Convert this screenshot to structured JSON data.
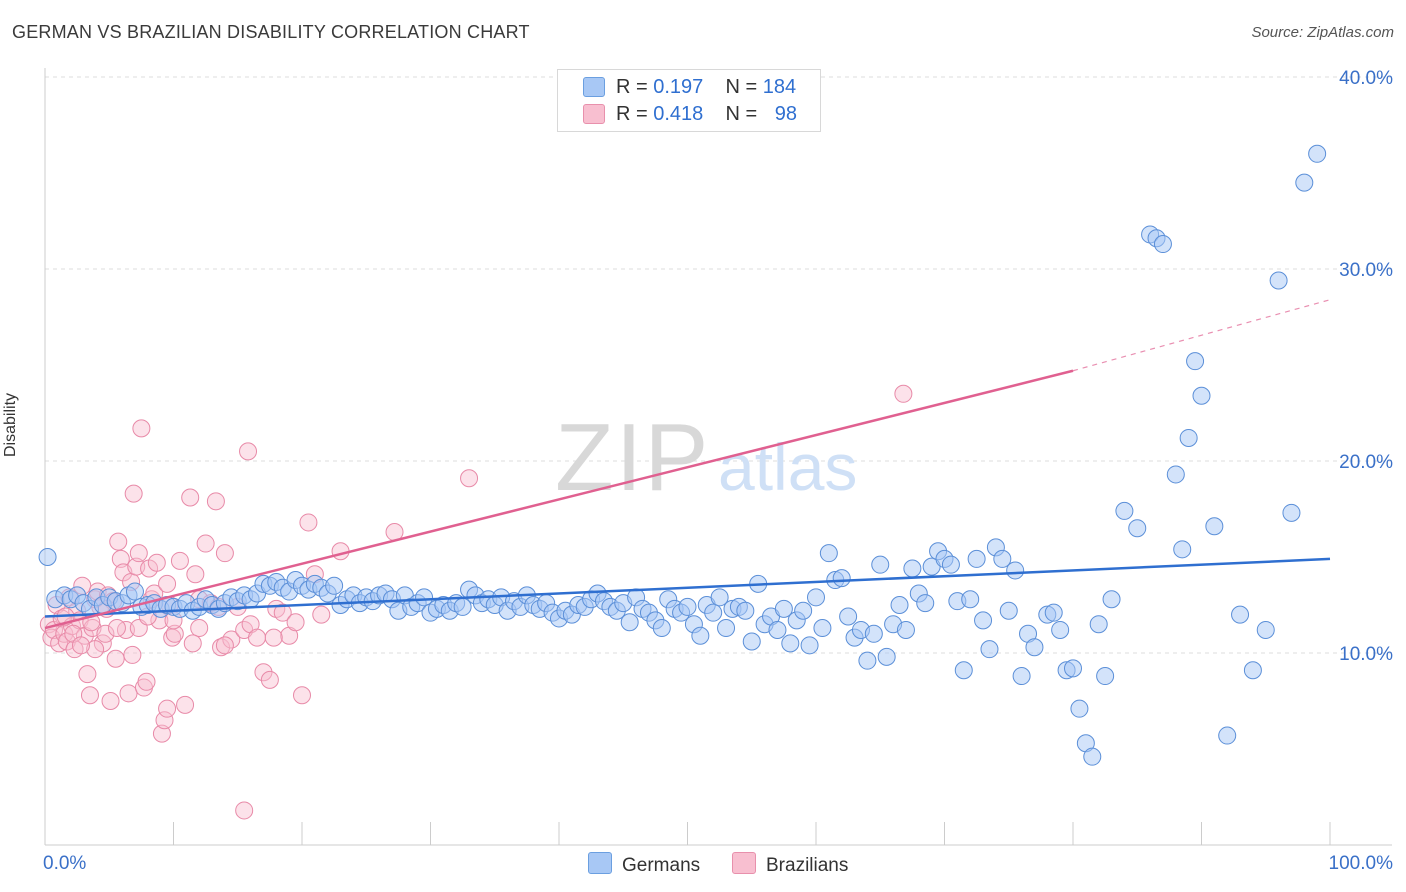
{
  "title": "GERMAN VS BRAZILIAN DISABILITY CORRELATION CHART",
  "source": "Source: ZipAtlas.com",
  "watermark": {
    "zip": "ZIP",
    "atlas": "atlas"
  },
  "legend": {
    "r_label": "R = ",
    "n_label": "N = ",
    "rows": [
      {
        "r": "0.197",
        "n": "184",
        "color": "#a8c8f5",
        "border": "#6b9fe0"
      },
      {
        "r": "0.418",
        "n": "98",
        "color": "#f8bfd0",
        "border": "#e890ac"
      }
    ]
  },
  "bottom_legend": {
    "germans": "Germans",
    "brazilians": "Brazilians"
  },
  "colors": {
    "german_fill": "#a8c8f5",
    "german_stroke": "#5b8fd8",
    "german_line": "#2f6fd0",
    "brazil_fill": "#f8bfd0",
    "brazil_stroke": "#e88aa8",
    "brazil_line": "#e06090",
    "axis_text": "#3a70c8",
    "grid": "#dddddd"
  },
  "chart_data": {
    "type": "scatter",
    "title": "GERMAN VS BRAZILIAN DISABILITY CORRELATION CHART",
    "xlabel": "",
    "ylabel": "Disability",
    "xlim": [
      0,
      100
    ],
    "ylim": [
      0,
      40
    ],
    "x_tick_labels": [
      "0.0%",
      "100.0%"
    ],
    "y_ticks": [
      10,
      20,
      30,
      40
    ],
    "y_tick_labels": [
      "10.0%",
      "20.0%",
      "30.0%",
      "40.0%"
    ],
    "grid": true,
    "legend_position": "top-center",
    "series": [
      {
        "name": "Germans",
        "r": 0.197,
        "n": 184,
        "trend": {
          "x": [
            0,
            100
          ],
          "y": [
            11.9,
            14.9
          ]
        },
        "points": [
          [
            0.2,
            15
          ],
          [
            0.8,
            12.8
          ],
          [
            1.5,
            13
          ],
          [
            2,
            12.8
          ],
          [
            2.5,
            13
          ],
          [
            3,
            12.6
          ],
          [
            3.5,
            12.3
          ],
          [
            4,
            12.9
          ],
          [
            4.5,
            12.5
          ],
          [
            5,
            12.9
          ],
          [
            5.5,
            12.7
          ],
          [
            6,
            12.6
          ],
          [
            6.5,
            13
          ],
          [
            7,
            13.2
          ],
          [
            7.5,
            12.4
          ],
          [
            8,
            12.5
          ],
          [
            8.5,
            12.6
          ],
          [
            9,
            12.3
          ],
          [
            9.5,
            12.5
          ],
          [
            10,
            12.4
          ],
          [
            10.5,
            12.3
          ],
          [
            11,
            12.6
          ],
          [
            11.5,
            12.2
          ],
          [
            12,
            12.4
          ],
          [
            12.5,
            12.8
          ],
          [
            13,
            12.5
          ],
          [
            13.5,
            12.3
          ],
          [
            14,
            12.6
          ],
          [
            14.5,
            12.9
          ],
          [
            15,
            12.7
          ],
          [
            15.5,
            13
          ],
          [
            16,
            12.8
          ],
          [
            16.5,
            13.1
          ],
          [
            17,
            13.6
          ],
          [
            17.5,
            13.5
          ],
          [
            18,
            13.7
          ],
          [
            18.5,
            13.4
          ],
          [
            19,
            13.2
          ],
          [
            19.5,
            13.8
          ],
          [
            20,
            13.5
          ],
          [
            20.5,
            13.3
          ],
          [
            21,
            13.6
          ],
          [
            21.5,
            13.4
          ],
          [
            22,
            13.1
          ],
          [
            22.5,
            13.5
          ],
          [
            23,
            12.5
          ],
          [
            23.5,
            12.8
          ],
          [
            24,
            13
          ],
          [
            24.5,
            12.6
          ],
          [
            25,
            12.9
          ],
          [
            25.5,
            12.7
          ],
          [
            26,
            13
          ],
          [
            26.5,
            13.1
          ],
          [
            27,
            12.8
          ],
          [
            27.5,
            12.2
          ],
          [
            28,
            13
          ],
          [
            28.5,
            12.4
          ],
          [
            29,
            12.6
          ],
          [
            29.5,
            12.9
          ],
          [
            30,
            12.1
          ],
          [
            30.5,
            12.3
          ],
          [
            31,
            12.5
          ],
          [
            31.5,
            12.2
          ],
          [
            32,
            12.6
          ],
          [
            32.5,
            12.4
          ],
          [
            33,
            13.3
          ],
          [
            33.5,
            13
          ],
          [
            34,
            12.6
          ],
          [
            34.5,
            12.8
          ],
          [
            35,
            12.5
          ],
          [
            35.5,
            12.9
          ],
          [
            36,
            12.2
          ],
          [
            36.5,
            12.7
          ],
          [
            37,
            12.4
          ],
          [
            37.5,
            13
          ],
          [
            38,
            12.5
          ],
          [
            38.5,
            12.3
          ],
          [
            39,
            12.6
          ],
          [
            39.5,
            12.1
          ],
          [
            40,
            11.8
          ],
          [
            40.5,
            12.2
          ],
          [
            41,
            12
          ],
          [
            41.5,
            12.5
          ],
          [
            42,
            12.4
          ],
          [
            42.5,
            12.8
          ],
          [
            43,
            13.1
          ],
          [
            43.5,
            12.7
          ],
          [
            44,
            12.4
          ],
          [
            44.5,
            12.2
          ],
          [
            45,
            12.6
          ],
          [
            45.5,
            11.6
          ],
          [
            46,
            12.9
          ],
          [
            46.5,
            12.3
          ],
          [
            47,
            12.1
          ],
          [
            47.5,
            11.7
          ],
          [
            48,
            11.3
          ],
          [
            48.5,
            12.8
          ],
          [
            49,
            12.3
          ],
          [
            49.5,
            12.1
          ],
          [
            50,
            12.4
          ],
          [
            50.5,
            11.5
          ],
          [
            51,
            10.9
          ],
          [
            51.5,
            12.5
          ],
          [
            52,
            12.1
          ],
          [
            52.5,
            12.9
          ],
          [
            53,
            11.3
          ],
          [
            53.5,
            12.3
          ],
          [
            54,
            12.4
          ],
          [
            54.5,
            12.2
          ],
          [
            55,
            10.6
          ],
          [
            55.5,
            13.6
          ],
          [
            56,
            11.5
          ],
          [
            56.5,
            11.9
          ],
          [
            57,
            11.2
          ],
          [
            57.5,
            12.3
          ],
          [
            58,
            10.5
          ],
          [
            58.5,
            11.7
          ],
          [
            59,
            12.2
          ],
          [
            59.5,
            10.4
          ],
          [
            60,
            12.9
          ],
          [
            60.5,
            11.3
          ],
          [
            61,
            15.2
          ],
          [
            61.5,
            13.8
          ],
          [
            62,
            13.9
          ],
          [
            62.5,
            11.9
          ],
          [
            63,
            10.8
          ],
          [
            63.5,
            11.2
          ],
          [
            64,
            9.6
          ],
          [
            64.5,
            11
          ],
          [
            65,
            14.6
          ],
          [
            65.5,
            9.8
          ],
          [
            66,
            11.5
          ],
          [
            66.5,
            12.5
          ],
          [
            67,
            11.2
          ],
          [
            67.5,
            14.4
          ],
          [
            68,
            13.1
          ],
          [
            68.5,
            12.6
          ],
          [
            69,
            14.5
          ],
          [
            69.5,
            15.3
          ],
          [
            70,
            14.9
          ],
          [
            70.5,
            14.6
          ],
          [
            71,
            12.7
          ],
          [
            71.5,
            9.1
          ],
          [
            72,
            12.8
          ],
          [
            72.5,
            14.9
          ],
          [
            73,
            11.7
          ],
          [
            73.5,
            10.2
          ],
          [
            74,
            15.5
          ],
          [
            74.5,
            14.9
          ],
          [
            75,
            12.2
          ],
          [
            75.5,
            14.3
          ],
          [
            76,
            8.8
          ],
          [
            76.5,
            11
          ],
          [
            77,
            10.3
          ],
          [
            78,
            12
          ],
          [
            78.5,
            12.1
          ],
          [
            79,
            11.2
          ],
          [
            79.5,
            9.1
          ],
          [
            80,
            9.2
          ],
          [
            80.5,
            7.1
          ],
          [
            81,
            5.3
          ],
          [
            81.5,
            4.6
          ],
          [
            82,
            11.5
          ],
          [
            82.5,
            8.8
          ],
          [
            83,
            12.8
          ],
          [
            84,
            17.4
          ],
          [
            85,
            16.5
          ],
          [
            86,
            31.8
          ],
          [
            86.5,
            31.6
          ],
          [
            87,
            31.3
          ],
          [
            88,
            19.3
          ],
          [
            88.5,
            15.4
          ],
          [
            89,
            21.2
          ],
          [
            89.5,
            25.2
          ],
          [
            90,
            23.4
          ],
          [
            91,
            16.6
          ],
          [
            92,
            5.7
          ],
          [
            93,
            12
          ],
          [
            94,
            9.1
          ],
          [
            95,
            11.2
          ],
          [
            96,
            29.4
          ],
          [
            97,
            17.3
          ],
          [
            98,
            34.5
          ],
          [
            99,
            36
          ]
        ]
      },
      {
        "name": "Brazilians",
        "r": 0.418,
        "n": 98,
        "trend": {
          "x": [
            0,
            80
          ],
          "y": [
            11.3,
            24.7
          ]
        },
        "trend_dashed": {
          "x": [
            80,
            100
          ],
          "y": [
            24.7,
            28.4
          ]
        },
        "points": [
          [
            0.3,
            11.5
          ],
          [
            0.5,
            10.8
          ],
          [
            0.7,
            11.2
          ],
          [
            0.9,
            12.5
          ],
          [
            1.1,
            10.5
          ],
          [
            1.3,
            11.8
          ],
          [
            1.5,
            11
          ],
          [
            1.7,
            10.6
          ],
          [
            1.9,
            12.9
          ],
          [
            2.1,
            11.4
          ],
          [
            2.3,
            10.2
          ],
          [
            2.5,
            12.2
          ],
          [
            2.7,
            11.7
          ],
          [
            2.9,
            13.5
          ],
          [
            3.1,
            10.9
          ],
          [
            3.3,
            8.9
          ],
          [
            3.5,
            7.8
          ],
          [
            3.7,
            11.3
          ],
          [
            3.9,
            12.8
          ],
          [
            4.1,
            13.2
          ],
          [
            4.3,
            12.4
          ],
          [
            4.5,
            10.5
          ],
          [
            4.7,
            11
          ],
          [
            4.9,
            13
          ],
          [
            5.1,
            7.5
          ],
          [
            5.3,
            12.7
          ],
          [
            5.5,
            9.7
          ],
          [
            5.7,
            15.8
          ],
          [
            5.9,
            14.9
          ],
          [
            6.1,
            14.2
          ],
          [
            6.3,
            11.2
          ],
          [
            6.5,
            7.9
          ],
          [
            6.7,
            13.7
          ],
          [
            6.9,
            18.3
          ],
          [
            7.1,
            14.5
          ],
          [
            7.3,
            11.3
          ],
          [
            7.5,
            21.7
          ],
          [
            7.7,
            8.2
          ],
          [
            7.9,
            8.5
          ],
          [
            8.1,
            14.4
          ],
          [
            8.3,
            12.8
          ],
          [
            8.5,
            13.1
          ],
          [
            8.7,
            14.7
          ],
          [
            8.9,
            11.7
          ],
          [
            9.1,
            5.8
          ],
          [
            9.3,
            6.5
          ],
          [
            9.5,
            7.1
          ],
          [
            9.7,
            12.5
          ],
          [
            9.9,
            10.8
          ],
          [
            10.1,
            11
          ],
          [
            10.5,
            14.8
          ],
          [
            10.9,
            7.3
          ],
          [
            11.3,
            18.1
          ],
          [
            11.7,
            14.1
          ],
          [
            12,
            12.8
          ],
          [
            12.5,
            15.7
          ],
          [
            12.9,
            12.6
          ],
          [
            13.3,
            17.9
          ],
          [
            13.7,
            10.3
          ],
          [
            14,
            15.2
          ],
          [
            14.5,
            10.7
          ],
          [
            15,
            12.4
          ],
          [
            15.5,
            11.2
          ],
          [
            16,
            11.5
          ],
          [
            16.5,
            10.8
          ],
          [
            17,
            9
          ],
          [
            17.5,
            8.6
          ],
          [
            18,
            12.3
          ],
          [
            18.5,
            12.1
          ],
          [
            19,
            10.9
          ],
          [
            19.5,
            11.6
          ],
          [
            20,
            7.8
          ],
          [
            20.5,
            16.8
          ],
          [
            21,
            14.1
          ],
          [
            21.5,
            12
          ],
          [
            15.5,
            1.8
          ],
          [
            15.8,
            20.5
          ],
          [
            7.3,
            15.2
          ],
          [
            8,
            11.9
          ],
          [
            10,
            11.7
          ],
          [
            12,
            11.3
          ],
          [
            14,
            10.4
          ],
          [
            4.8,
            12.3
          ],
          [
            3.9,
            10.2
          ],
          [
            2.2,
            11
          ],
          [
            1.6,
            11.9
          ],
          [
            2.8,
            10.4
          ],
          [
            3.6,
            11.6
          ],
          [
            5.6,
            11.3
          ],
          [
            6.8,
            9.9
          ],
          [
            9.5,
            13.6
          ],
          [
            11.5,
            10.5
          ],
          [
            13.5,
            12.4
          ],
          [
            17.8,
            10.8
          ],
          [
            23,
            15.3
          ],
          [
            27.2,
            16.3
          ],
          [
            33,
            19.1
          ],
          [
            66.8,
            23.5
          ]
        ]
      }
    ]
  }
}
